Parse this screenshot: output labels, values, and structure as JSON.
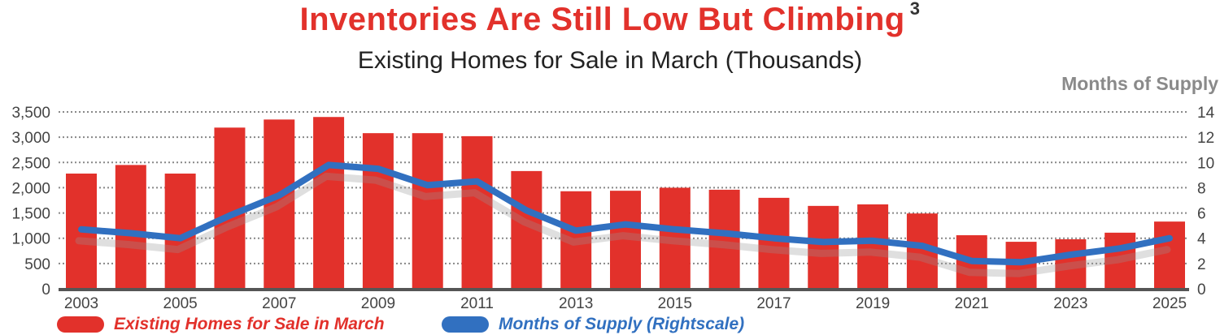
{
  "title": "Inventories Are Still Low But Climbing",
  "title_superscript": "3",
  "subtitle": "Existing Homes for Sale in March (Thousands)",
  "chart_data": {
    "type": "bar+line",
    "categories": [
      "2003",
      "2004",
      "2005",
      "2006",
      "2007",
      "2008",
      "2009",
      "2010",
      "2011",
      "2012",
      "2013",
      "2014",
      "2015",
      "2016",
      "2017",
      "2018",
      "2019",
      "2020",
      "2021",
      "2022",
      "2023",
      "2024",
      "2025"
    ],
    "x_tick_labels": [
      "2003",
      "2005",
      "2007",
      "2009",
      "2011",
      "2013",
      "2015",
      "2017",
      "2019",
      "2021",
      "2023",
      "2025"
    ],
    "series": [
      {
        "name": "Existing Homes for Sale in March",
        "type": "bar",
        "axis": "left",
        "color": "#e2312b",
        "values": [
          2280,
          2450,
          2280,
          3190,
          3350,
          3400,
          3080,
          3080,
          3020,
          2330,
          1930,
          1940,
          2000,
          1960,
          1800,
          1640,
          1670,
          1490,
          1060,
          930,
          980,
          1110,
          1330
        ]
      },
      {
        "name": "Months of Supply (Rightscale)",
        "type": "line",
        "axis": "right",
        "color": "#3170c0",
        "values": [
          4.7,
          4.4,
          4.0,
          5.8,
          7.4,
          9.8,
          9.5,
          8.2,
          8.5,
          6.2,
          4.6,
          5.1,
          4.7,
          4.4,
          4.0,
          3.7,
          3.8,
          3.4,
          2.2,
          2.1,
          2.7,
          3.2,
          4.0
        ]
      }
    ],
    "y_left": {
      "range": [
        0,
        3500
      ],
      "ticks": [
        "0",
        "500",
        "1,000",
        "1,500",
        "2,000",
        "2,500",
        "3,000",
        "3,500"
      ]
    },
    "y_right": {
      "title": "Months of Supply",
      "range": [
        0,
        14
      ],
      "ticks": [
        "0",
        "2",
        "4",
        "6",
        "8",
        "10",
        "12",
        "14"
      ]
    },
    "grid": true,
    "legend_placement": "bottom"
  }
}
